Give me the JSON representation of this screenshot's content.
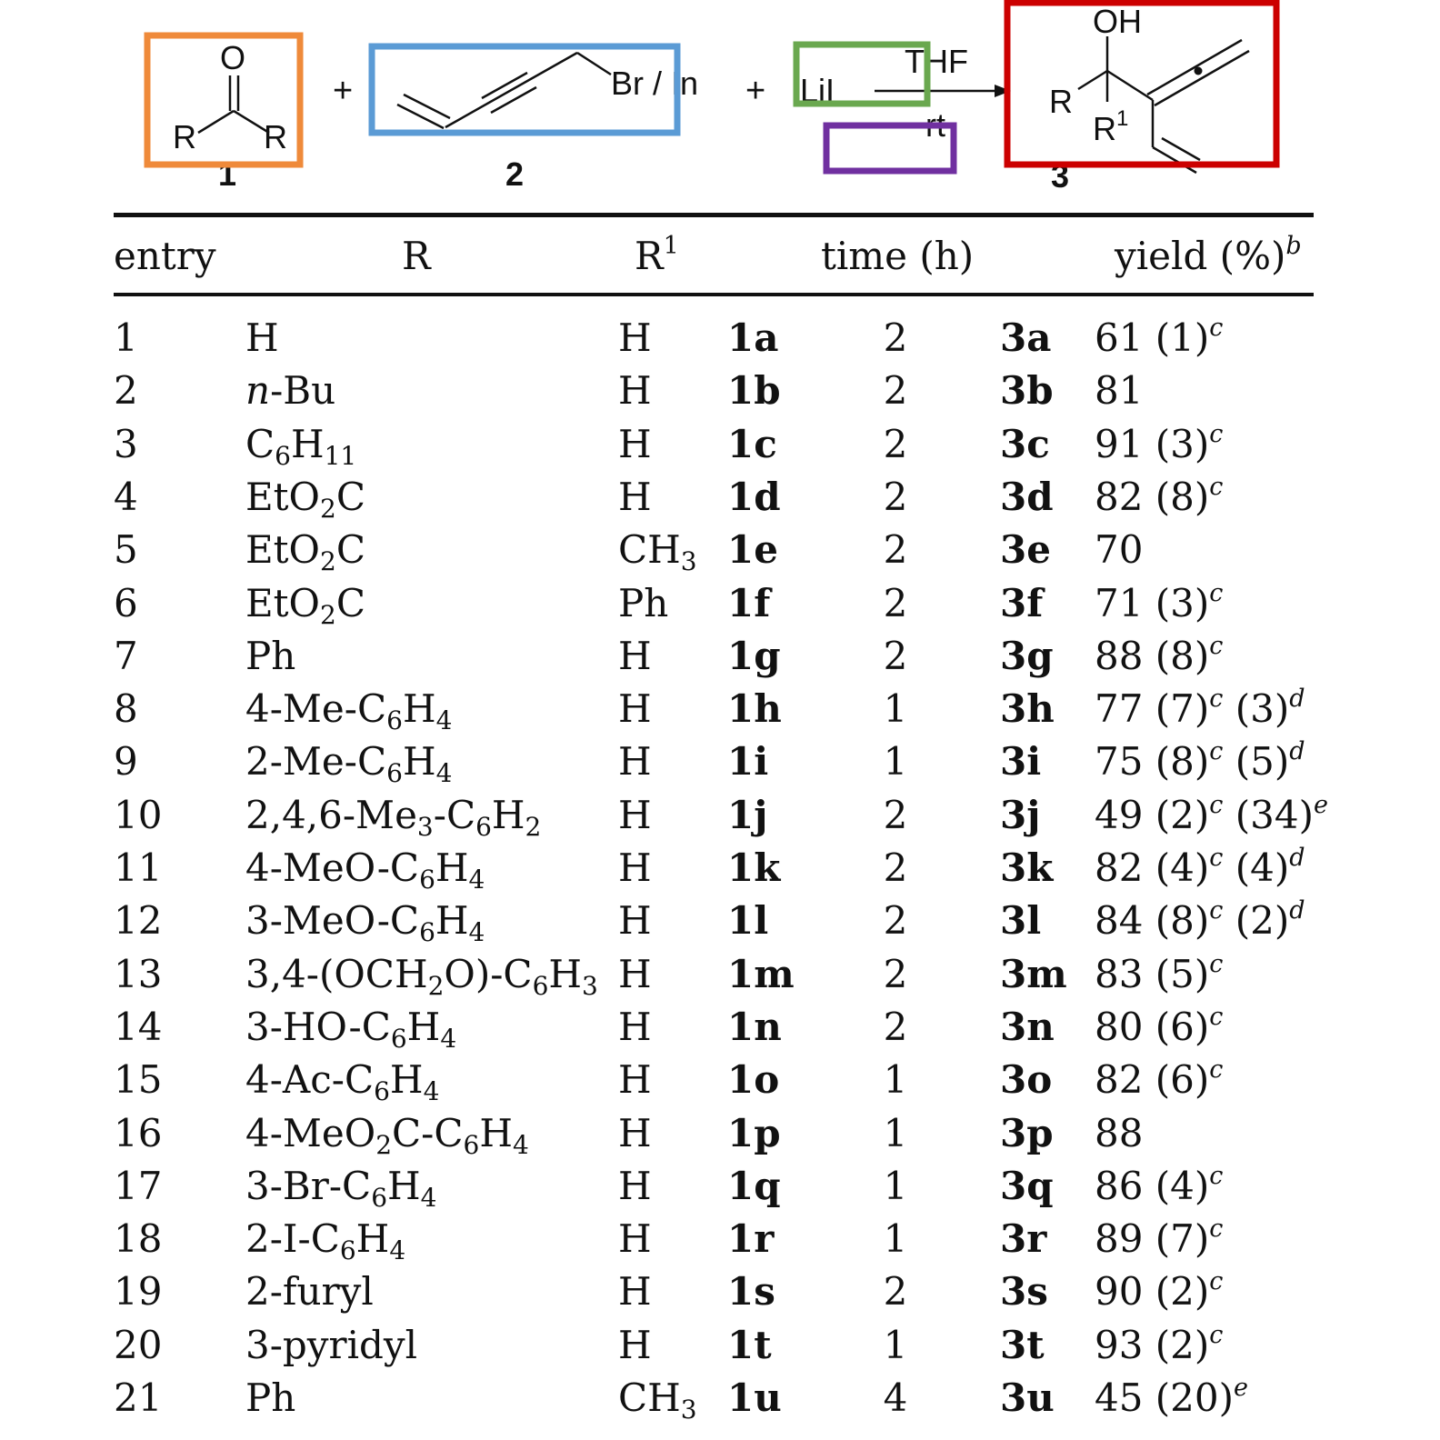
{
  "scheme": {
    "reactant1_label": "1",
    "reactant2_label": "2",
    "product_label": "3",
    "carbonyl_o": "O",
    "group_r": "R",
    "group_r1": "R",
    "group_r1_sup": "1",
    "reagent_text": "Br / In",
    "additive": "LiI",
    "solvent": "THF",
    "temperature": "rt",
    "product_oh": "OH",
    "plus": "+",
    "box_colors": {
      "carbonyl": "#ef8a3a",
      "propargyl_bromide": "#5b9bd5",
      "additive": "#6aa84f",
      "empty": "#7030a0",
      "product": "#cc0000"
    }
  },
  "table": {
    "headers": {
      "entry": "entry",
      "r": "R",
      "r1_base": "R",
      "r1_sup": "1",
      "time": "time (h)",
      "yield": "yield (%)",
      "yield_sup": "b"
    },
    "rows": [
      {
        "entry": "1",
        "r": "H",
        "r1": "H",
        "sm": "1a",
        "time": "2",
        "prod": "3a",
        "yield": "61 (1)<sup>c</sup>"
      },
      {
        "entry": "2",
        "r": "<i>n</i>-Bu",
        "r1": "H",
        "sm": "1b",
        "time": "2",
        "prod": "3b",
        "yield": "81"
      },
      {
        "entry": "3",
        "r": "C<sub>6</sub>H<sub>11</sub>",
        "r1": "H",
        "sm": "1c",
        "time": "2",
        "prod": "3c",
        "yield": "91 (3)<sup>c</sup>"
      },
      {
        "entry": "4",
        "r": "EtO<sub>2</sub>C",
        "r1": "H",
        "sm": "1d",
        "time": "2",
        "prod": "3d",
        "yield": "82 (8)<sup>c</sup>"
      },
      {
        "entry": "5",
        "r": "EtO<sub>2</sub>C",
        "r1": "CH<sub>3</sub>",
        "sm": "1e",
        "time": "2",
        "prod": "3e",
        "yield": "70"
      },
      {
        "entry": "6",
        "r": "EtO<sub>2</sub>C",
        "r1": "Ph",
        "sm": "1f",
        "time": "2",
        "prod": "3f",
        "yield": "71 (3)<sup>c</sup>"
      },
      {
        "entry": "7",
        "r": "Ph",
        "r1": "H",
        "sm": "1g",
        "time": "2",
        "prod": "3g",
        "yield": "88 (8)<sup>c</sup>"
      },
      {
        "entry": "8",
        "r": "4-Me-C<sub>6</sub>H<sub>4</sub>",
        "r1": "H",
        "sm": "1h",
        "time": "1",
        "prod": "3h",
        "yield": "77 (7)<sup>c</sup> (3)<sup>d</sup>"
      },
      {
        "entry": "9",
        "r": "2-Me-C<sub>6</sub>H<sub>4</sub>",
        "r1": "H",
        "sm": "1i",
        "time": "1",
        "prod": "3i",
        "yield": "75 (8)<sup>c</sup> (5)<sup>d</sup>"
      },
      {
        "entry": "10",
        "r": "2,4,6-Me<sub>3</sub>-C<sub>6</sub>H<sub>2</sub>",
        "r1": "H",
        "sm": "1j",
        "time": "2",
        "prod": "3j",
        "yield": "49 (2)<sup>c</sup> (34)<sup>e</sup>"
      },
      {
        "entry": "11",
        "r": "4-MeO-C<sub>6</sub>H<sub>4</sub>",
        "r1": "H",
        "sm": "1k",
        "time": "2",
        "prod": "3k",
        "yield": "82 (4)<sup>c</sup> (4)<sup>d</sup>"
      },
      {
        "entry": "12",
        "r": "3-MeO-C<sub>6</sub>H<sub>4</sub>",
        "r1": "H",
        "sm": "1l",
        "time": "2",
        "prod": "3l",
        "yield": "84 (8)<sup>c</sup> (2)<sup>d</sup>"
      },
      {
        "entry": "13",
        "r": "3,4-(OCH<sub>2</sub>O)-C<sub>6</sub>H<sub>3</sub>",
        "r1": "H",
        "sm": "1m",
        "time": "2",
        "prod": "3m",
        "yield": "83 (5)<sup>c</sup>"
      },
      {
        "entry": "14",
        "r": "3-HO-C<sub>6</sub>H<sub>4</sub>",
        "r1": "H",
        "sm": "1n",
        "time": "2",
        "prod": "3n",
        "yield": "80 (6)<sup>c</sup>"
      },
      {
        "entry": "15",
        "r": "4-Ac-C<sub>6</sub>H<sub>4</sub>",
        "r1": "H",
        "sm": "1o",
        "time": "1",
        "prod": "3o",
        "yield": "82 (6)<sup>c</sup>"
      },
      {
        "entry": "16",
        "r": "4-MeO<sub>2</sub>C-C<sub>6</sub>H<sub>4</sub>",
        "r1": "H",
        "sm": "1p",
        "time": "1",
        "prod": "3p",
        "yield": "88"
      },
      {
        "entry": "17",
        "r": "3-Br-C<sub>6</sub>H<sub>4</sub>",
        "r1": "H",
        "sm": "1q",
        "time": "1",
        "prod": "3q",
        "yield": "86 (4)<sup>c</sup>"
      },
      {
        "entry": "18",
        "r": "2-I-C<sub>6</sub>H<sub>4</sub>",
        "r1": "H",
        "sm": "1r",
        "time": "1",
        "prod": "3r",
        "yield": "89 (7)<sup>c</sup>"
      },
      {
        "entry": "19",
        "r": "2-furyl",
        "r1": "H",
        "sm": "1s",
        "time": "2",
        "prod": "3s",
        "yield": "90 (2)<sup>c</sup>"
      },
      {
        "entry": "20",
        "r": "3-pyridyl",
        "r1": "H",
        "sm": "1t",
        "time": "1",
        "prod": "3t",
        "yield": "93 (2)<sup>c</sup>"
      },
      {
        "entry": "21",
        "r": "Ph",
        "r1": "CH<sub>3</sub>",
        "sm": "1u",
        "time": "4",
        "prod": "3u",
        "yield": "45 (20)<sup>e</sup>"
      }
    ]
  }
}
